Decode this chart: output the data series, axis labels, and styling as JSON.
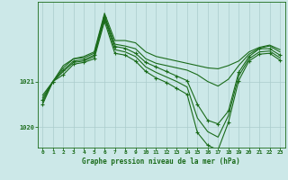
{
  "background_color": "#cce8e8",
  "plot_bg_color": "#cce8e8",
  "grid_color": "#aacccc",
  "line_color": "#1a6b1a",
  "title": "Graphe pression niveau de la mer (hPa)",
  "ylim": [
    1019.55,
    1022.75
  ],
  "yticks": [
    1020,
    1021
  ],
  "xlim": [
    -0.5,
    23.5
  ],
  "xticks": [
    0,
    1,
    2,
    3,
    4,
    5,
    6,
    7,
    8,
    9,
    10,
    11,
    12,
    13,
    14,
    15,
    16,
    17,
    18,
    19,
    20,
    21,
    22,
    23
  ],
  "series": [
    {
      "x": [
        0,
        1,
        2,
        3,
        4,
        5,
        6,
        7,
        8,
        9,
        10,
        11,
        12,
        13,
        14,
        15,
        16,
        17,
        18,
        19,
        20,
        21,
        22,
        23
      ],
      "y": [
        1020.7,
        1021.0,
        1021.35,
        1021.5,
        1021.55,
        1021.65,
        1022.5,
        1021.9,
        1021.9,
        1021.85,
        1021.65,
        1021.55,
        1021.5,
        1021.45,
        1021.4,
        1021.35,
        1021.3,
        1021.28,
        1021.35,
        1021.45,
        1021.65,
        1021.75,
        1021.8,
        1021.7
      ],
      "marker": null,
      "lw": 0.8
    },
    {
      "x": [
        0,
        1,
        2,
        3,
        4,
        5,
        6,
        7,
        8,
        9,
        10,
        11,
        12,
        13,
        14,
        15,
        16,
        17,
        18,
        19,
        20,
        21,
        22,
        23
      ],
      "y": [
        1020.65,
        1021.0,
        1021.3,
        1021.5,
        1021.52,
        1021.62,
        1022.45,
        1021.82,
        1021.78,
        1021.72,
        1021.5,
        1021.4,
        1021.35,
        1021.3,
        1021.25,
        1021.15,
        1021.0,
        1020.9,
        1021.05,
        1021.35,
        1021.6,
        1021.73,
        1021.78,
        1021.65
      ],
      "marker": null,
      "lw": 0.8
    },
    {
      "x": [
        0,
        1,
        2,
        3,
        4,
        5,
        6,
        7,
        8,
        9,
        10,
        11,
        12,
        13,
        14,
        15,
        16,
        17,
        18,
        19,
        20,
        21,
        22,
        23
      ],
      "y": [
        1020.6,
        1021.0,
        1021.25,
        1021.45,
        1021.48,
        1021.58,
        1022.42,
        1021.77,
        1021.73,
        1021.62,
        1021.42,
        1021.32,
        1021.22,
        1021.12,
        1021.02,
        1020.5,
        1020.15,
        1020.07,
        1020.35,
        1021.2,
        1021.55,
        1021.72,
        1021.72,
        1021.58
      ],
      "marker": "+",
      "lw": 0.8
    },
    {
      "x": [
        0,
        1,
        2,
        3,
        4,
        5,
        6,
        7,
        8,
        9,
        10,
        11,
        12,
        13,
        14,
        15,
        16,
        17,
        18,
        19,
        20,
        21,
        22,
        23
      ],
      "y": [
        1020.55,
        1021.0,
        1021.22,
        1021.42,
        1021.45,
        1021.55,
        1022.38,
        1021.7,
        1021.65,
        1021.55,
        1021.32,
        1021.2,
        1021.1,
        1021.0,
        1020.88,
        1020.2,
        1019.9,
        1019.78,
        1020.25,
        1021.12,
        1021.5,
        1021.65,
        1021.67,
        1021.52
      ],
      "marker": null,
      "lw": 0.8
    },
    {
      "x": [
        0,
        1,
        2,
        3,
        4,
        5,
        6,
        7,
        8,
        9,
        10,
        11,
        12,
        13,
        14,
        15,
        16,
        17,
        18,
        19,
        20,
        21,
        22,
        23
      ],
      "y": [
        1020.5,
        1021.0,
        1021.15,
        1021.38,
        1021.42,
        1021.5,
        1022.32,
        1021.62,
        1021.58,
        1021.45,
        1021.22,
        1021.08,
        1020.98,
        1020.85,
        1020.72,
        1019.88,
        1019.6,
        1019.5,
        1020.1,
        1021.02,
        1021.45,
        1021.6,
        1021.62,
        1021.47
      ],
      "marker": "+",
      "lw": 0.8
    }
  ]
}
